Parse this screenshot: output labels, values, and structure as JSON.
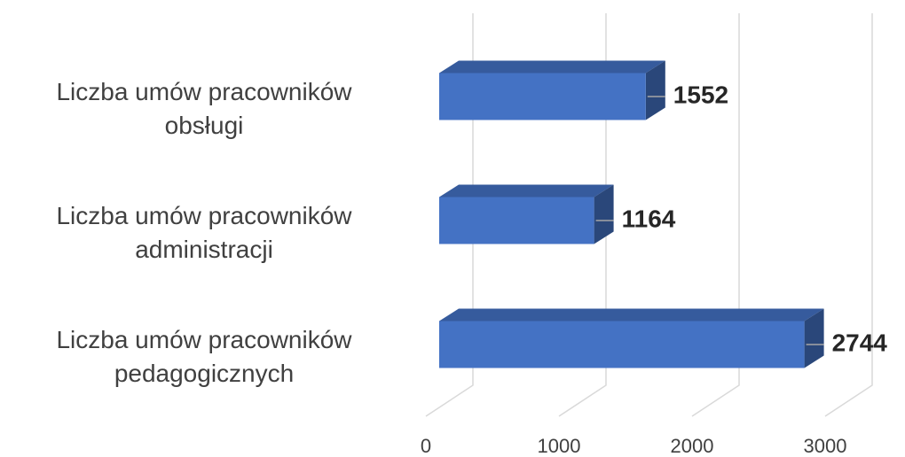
{
  "chart_data": {
    "type": "bar3d",
    "orientation": "horizontal",
    "categories": [
      "Liczba umów pracowników\nobsługi",
      "Liczba umów pracowników\nadministracji",
      "Liczba umów pracowników\npedagogicznych"
    ],
    "values": [
      1552,
      1164,
      2744
    ],
    "color": "#4472c4",
    "xlim": [
      0,
      3000
    ],
    "xticks": [
      0,
      1000,
      2000,
      3000
    ],
    "grid": true
  }
}
